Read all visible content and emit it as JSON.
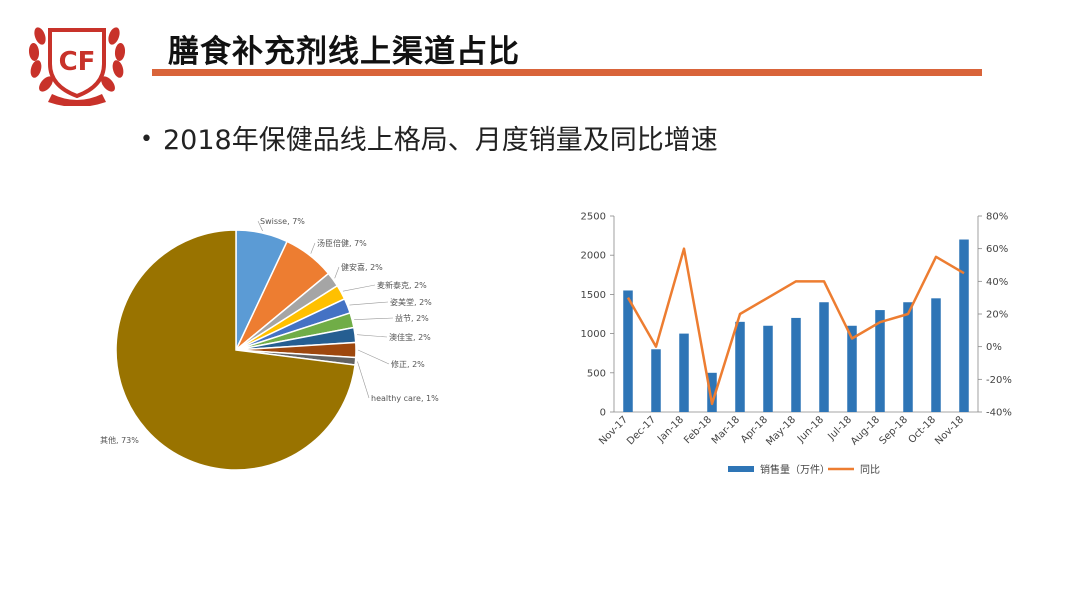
{
  "slide": {
    "logo_text": "CF",
    "title": "膳食补充剂线上渠道占比",
    "bullet": "2018年保健品线上格局、月度销量及同比增速"
  },
  "colors": {
    "accent": "#d9643a",
    "logo_red": "#c8322a",
    "bar": "#2e75b6",
    "line": "#ed7d31"
  },
  "chart_data": [
    {
      "type": "pie",
      "slices": [
        {
          "label": "Swisse",
          "value": 7,
          "text": "Swisse, 7%",
          "color": "#5b9bd5"
        },
        {
          "label": "汤臣倍健",
          "value": 7,
          "text": "汤臣倍健, 7%",
          "color": "#ed7d31"
        },
        {
          "label": "健安喜",
          "value": 2,
          "text": "健安喜, 2%",
          "color": "#a5a5a5"
        },
        {
          "label": "麦新泰克",
          "value": 2,
          "text": "麦新泰克, 2%",
          "color": "#ffc000"
        },
        {
          "label": "姿美堂",
          "value": 2,
          "text": "姿美堂, 2%",
          "color": "#4472c4"
        },
        {
          "label": "益节",
          "value": 2,
          "text": "益节, 2%",
          "color": "#70ad47"
        },
        {
          "label": "澳佳宝",
          "value": 2,
          "text": "澳佳宝, 2%",
          "color": "#255e91"
        },
        {
          "label": "修正",
          "value": 2,
          "text": "修正, 2%",
          "color": "#9e480e"
        },
        {
          "label": "healthy care",
          "value": 1,
          "text": "healthy care, 1%",
          "color": "#636363"
        },
        {
          "label": "其他",
          "value": 73,
          "text": "其他, 73%",
          "color": "#997300"
        }
      ]
    },
    {
      "type": "bar+line",
      "categories": [
        "Nov-17",
        "Dec-17",
        "Jan-18",
        "Feb-18",
        "Mar-18",
        "Apr-18",
        "May-18",
        "Jun-18",
        "Jul-18",
        "Aug-18",
        "Sep-18",
        "Oct-18",
        "Nov-18"
      ],
      "series": [
        {
          "name": "销售量（万件）",
          "type": "bar",
          "axis": "left",
          "values": [
            1550,
            800,
            1000,
            500,
            1150,
            1100,
            1200,
            1400,
            1100,
            1300,
            1400,
            1450,
            2200
          ]
        },
        {
          "name": "同比",
          "type": "line",
          "axis": "right",
          "values": [
            0.3,
            0.0,
            0.6,
            -0.35,
            0.2,
            0.3,
            0.4,
            0.4,
            0.05,
            0.15,
            0.2,
            0.55,
            0.45
          ]
        }
      ],
      "y_left": {
        "range": [
          0,
          2500
        ],
        "ticks": [
          "0",
          "500",
          "1000",
          "1500",
          "2000",
          "2500"
        ]
      },
      "y_right": {
        "range": [
          -0.4,
          0.8
        ],
        "ticks": [
          "-40%",
          "-20%",
          "0%",
          "20%",
          "40%",
          "60%",
          "80%"
        ]
      },
      "legend_position": "bottom"
    }
  ]
}
